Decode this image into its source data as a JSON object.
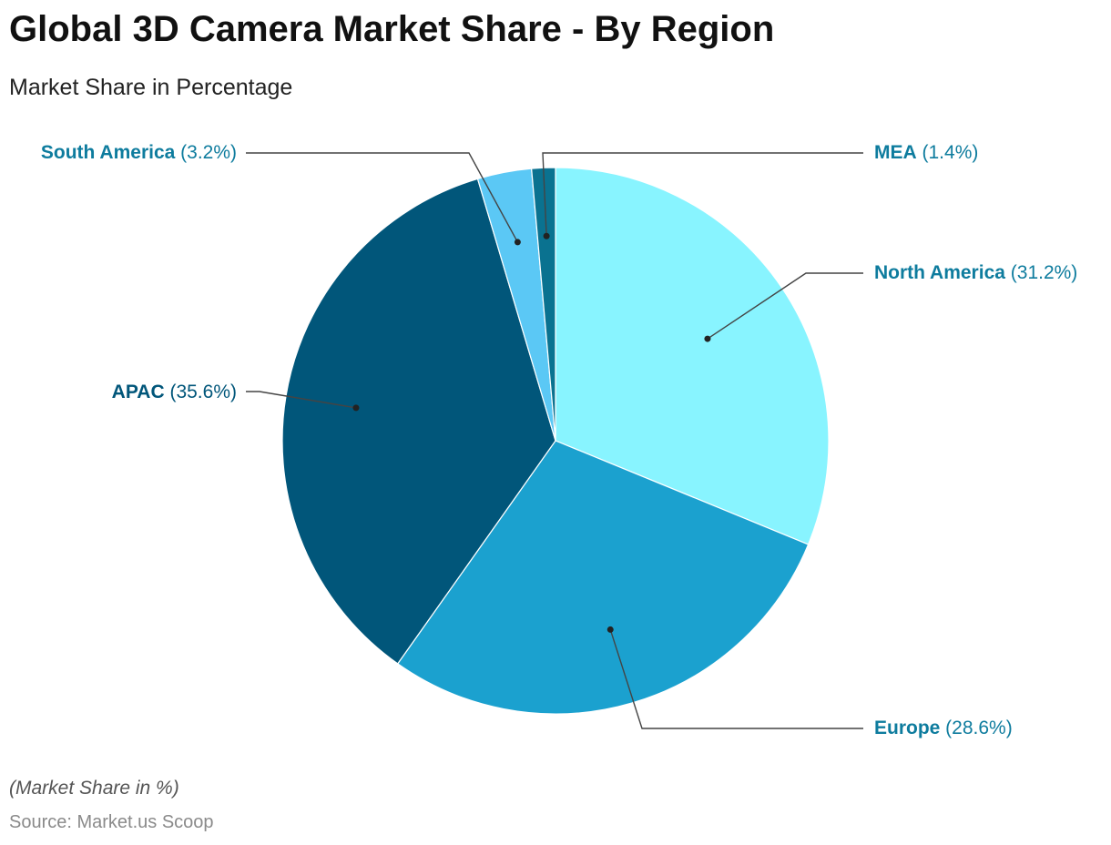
{
  "title": "Global 3D Camera Market Share - By Region",
  "subtitle": "Market Share in Percentage",
  "note": "(Market Share in %)",
  "source": "Source: Market.us Scoop",
  "chart_data": {
    "type": "pie",
    "start_angle_deg": 0,
    "direction": "clockwise",
    "slices": [
      {
        "name": "North America",
        "value": 31.2,
        "label_value": "(31.2%)",
        "color": "#88F4FF",
        "label_color": "#0E7C9E",
        "label_side": "right"
      },
      {
        "name": "Europe",
        "value": 28.6,
        "label_value": "(28.6%)",
        "color": "#1BA1CF",
        "label_color": "#0E7C9E",
        "label_side": "right"
      },
      {
        "name": "APAC",
        "value": 35.6,
        "label_value": "(35.6%)",
        "color": "#01567A",
        "label_color": "#01567A",
        "label_side": "left"
      },
      {
        "name": "South America",
        "value": 3.2,
        "label_value": "(3.2%)",
        "color": "#5BC8F5",
        "label_color": "#0E7C9E",
        "label_side": "left"
      },
      {
        "name": "MEA",
        "value": 1.4,
        "label_value": "(1.4%)",
        "color": "#0A7290",
        "label_color": "#0E7C9E",
        "label_side": "right"
      }
    ]
  }
}
